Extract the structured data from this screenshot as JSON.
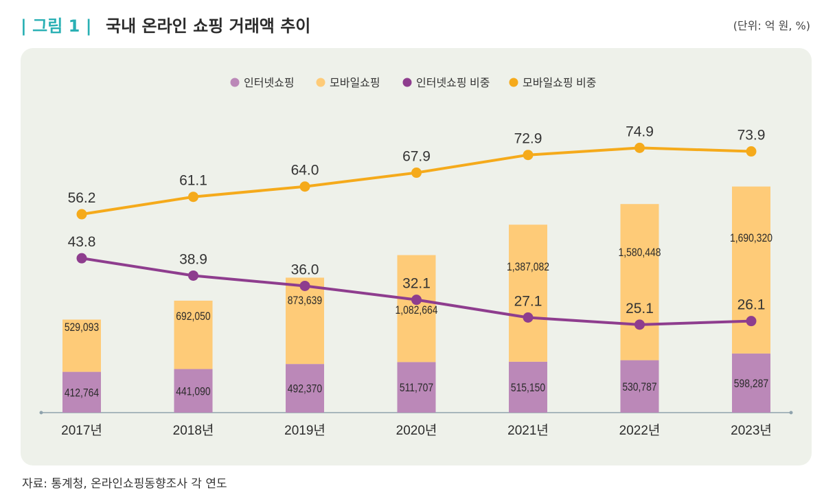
{
  "header": {
    "figure_label": "| 그림 1 |",
    "title": "국내 온라인 쇼핑 거래액 추이",
    "unit": "(단위: 억 원, %)"
  },
  "source": "자료: 통계청, 온라인쇼핑동향조사 각 연도",
  "colors": {
    "internet_bar": "#bb88b8",
    "mobile_bar": "#fecb78",
    "internet_line": "#8e3d8e",
    "mobile_line": "#f5aa1b",
    "panel": "#eef1ea"
  },
  "chart_data": {
    "type": "bar",
    "stacked": true,
    "categories": [
      "2017년",
      "2018년",
      "2019년",
      "2020년",
      "2021년",
      "2022년",
      "2023년"
    ],
    "series": [
      {
        "name": "인터넷쇼핑",
        "kind": "bar",
        "values": [
          412764,
          441090,
          492370,
          511707,
          515150,
          530787,
          598287
        ],
        "labels": [
          "412,764",
          "441,090",
          "492,370",
          "511,707",
          "515,150",
          "530,787",
          "598,287"
        ]
      },
      {
        "name": "모바일쇼핑",
        "kind": "bar",
        "values": [
          529093,
          692050,
          873639,
          1082664,
          1387082,
          1580448,
          1690320
        ],
        "labels": [
          "529,093",
          "692,050",
          "873,639",
          "1,082,664",
          "1,387,082",
          "1,580,448",
          "1,690,320"
        ]
      },
      {
        "name": "인터넷쇼핑 비중",
        "kind": "line",
        "values": [
          43.8,
          38.9,
          36.0,
          32.1,
          27.1,
          25.1,
          26.1
        ],
        "labels": [
          "43.8",
          "38.9",
          "36.0",
          "32.1",
          "27.1",
          "25.1",
          "26.1"
        ]
      },
      {
        "name": "모바일쇼핑 비중",
        "kind": "line",
        "values": [
          56.2,
          61.1,
          64.0,
          67.9,
          72.9,
          74.9,
          73.9
        ],
        "labels": [
          "56.2",
          "61.1",
          "64.0",
          "67.9",
          "72.9",
          "74.9",
          "73.9"
        ]
      }
    ],
    "legend": "top-center",
    "grid": false
  }
}
